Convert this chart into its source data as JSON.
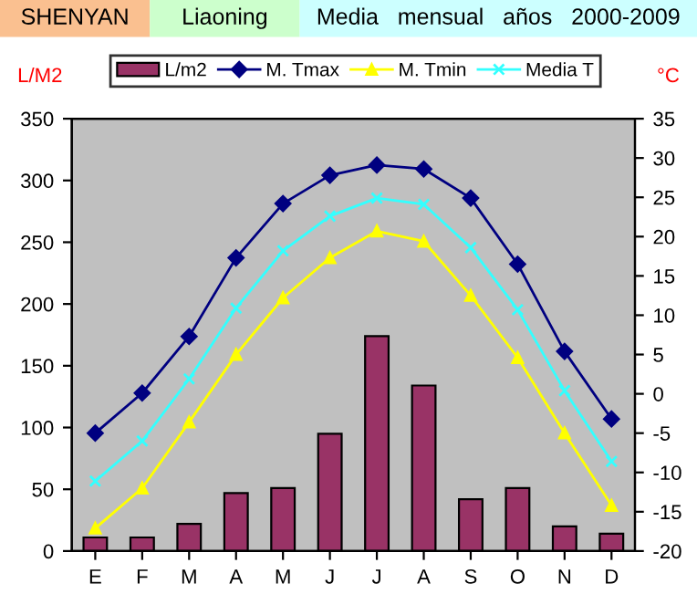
{
  "chart_data": {
    "type": "bar",
    "title": "SHENYAN",
    "subtitle": "Liaoning",
    "annotations": [
      "Media   mensual   años   2000-2009"
    ],
    "ylabel": "L/M2",
    "y2label": "°C",
    "categories": [
      "E",
      "F",
      "M",
      "A",
      "M",
      "J",
      "J",
      "A",
      "S",
      "O",
      "N",
      "D"
    ],
    "series": [
      {
        "name": "L/m2",
        "color": "#993366",
        "values": [
          11,
          11,
          22,
          47,
          51,
          95,
          174,
          134,
          42,
          51,
          20,
          14
        ]
      },
      {
        "name": "M. Tmax",
        "type": "line",
        "axis": "y2",
        "marker": "diamond",
        "color": "#000080",
        "values": [
          -5.0,
          0.1,
          7.3,
          17.3,
          24.2,
          27.8,
          29.1,
          28.6,
          24.9,
          16.5,
          5.4,
          -3.2
        ]
      },
      {
        "name": "M. Tmin",
        "type": "line",
        "axis": "y2",
        "marker": "triangle",
        "color": "#ffff00",
        "values": [
          -17.1,
          -12.0,
          -3.6,
          5.0,
          12.2,
          17.3,
          20.7,
          19.4,
          12.5,
          4.6,
          -5.0,
          -14.2
        ]
      },
      {
        "name": "Media T",
        "type": "line",
        "axis": "y2",
        "marker": "cross",
        "color": "#33ffff",
        "values": [
          -11.1,
          -6.0,
          1.9,
          10.9,
          18.2,
          22.6,
          24.9,
          24.1,
          18.6,
          10.7,
          0.4,
          -8.6
        ]
      }
    ],
    "ylim": [
      0,
      350
    ],
    "yticks": [
      0,
      50,
      100,
      150,
      200,
      250,
      300,
      350
    ],
    "y2lim": [
      -20,
      35
    ],
    "y2ticks": [
      -20,
      -15,
      -10,
      -5,
      0,
      5,
      10,
      15,
      20,
      25,
      30,
      35
    ],
    "grid": false,
    "legend": "top"
  }
}
